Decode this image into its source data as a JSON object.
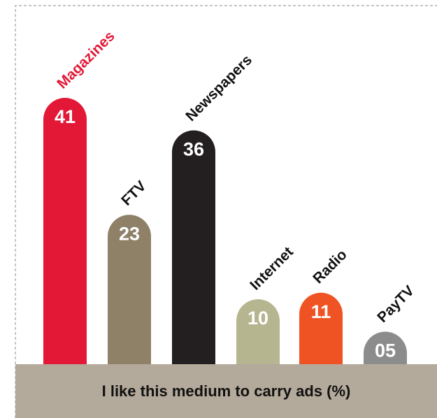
{
  "chart_data": {
    "type": "bar",
    "categories": [
      "Magazines",
      "FTV",
      "Newspapers",
      "Internet",
      "Radio",
      "PayTV"
    ],
    "values": [
      41,
      23,
      36,
      10,
      11,
      5
    ],
    "value_labels": [
      "41",
      "23",
      "36",
      "10",
      "11",
      "05"
    ],
    "colors": [
      "#e31837",
      "#8f8068",
      "#231f20",
      "#b5b58f",
      "#ef5323",
      "#8c8c8c"
    ],
    "label_colors": [
      "#e31837",
      "#111111",
      "#111111",
      "#111111",
      "#111111",
      "#111111"
    ],
    "caption": "I like this medium to carry ads (%)",
    "ylim": [
      0,
      41
    ],
    "grid": false
  }
}
